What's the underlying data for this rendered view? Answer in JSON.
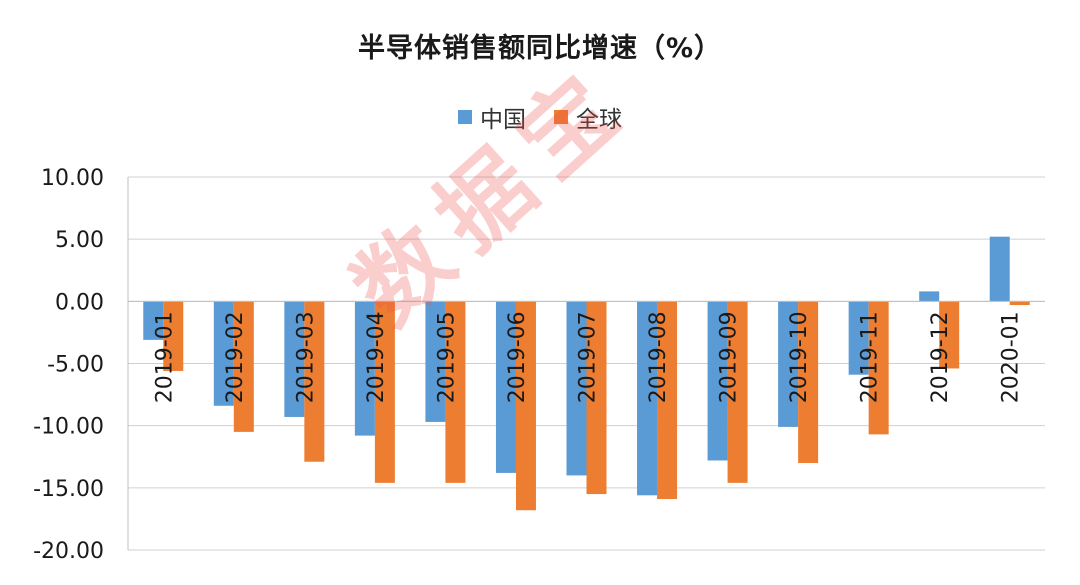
{
  "chart_data": {
    "type": "bar",
    "title": "半导体销售额同比增速（%）",
    "categories": [
      "2019-01",
      "2019-02",
      "2019-03",
      "2019-04",
      "2019-05",
      "2019-06",
      "2019-07",
      "2019-08",
      "2019-09",
      "2019-10",
      "2019-11",
      "2019-12",
      "2020-01"
    ],
    "series": [
      {
        "name": "中国",
        "color": "#5b9bd5",
        "values": [
          -3.1,
          -8.4,
          -9.3,
          -10.8,
          -9.7,
          -13.8,
          -14.0,
          -15.6,
          -12.8,
          -10.1,
          -5.9,
          0.8,
          5.2
        ]
      },
      {
        "name": "全球",
        "color": "#ed7d31",
        "values": [
          -5.6,
          -10.5,
          -12.9,
          -14.6,
          -14.6,
          -16.8,
          -15.5,
          -15.9,
          -14.6,
          -13.0,
          -10.7,
          -5.4,
          -0.3
        ]
      }
    ],
    "yticks": [
      "10.00",
      "5.00",
      "0.00",
      "-5.00",
      "-10.00",
      "-15.00",
      "-20.00"
    ],
    "ylim": [
      -20,
      10
    ],
    "legend_position": "top-center",
    "grid": true,
    "xlabel": "",
    "ylabel": ""
  },
  "watermark": "数据宝"
}
